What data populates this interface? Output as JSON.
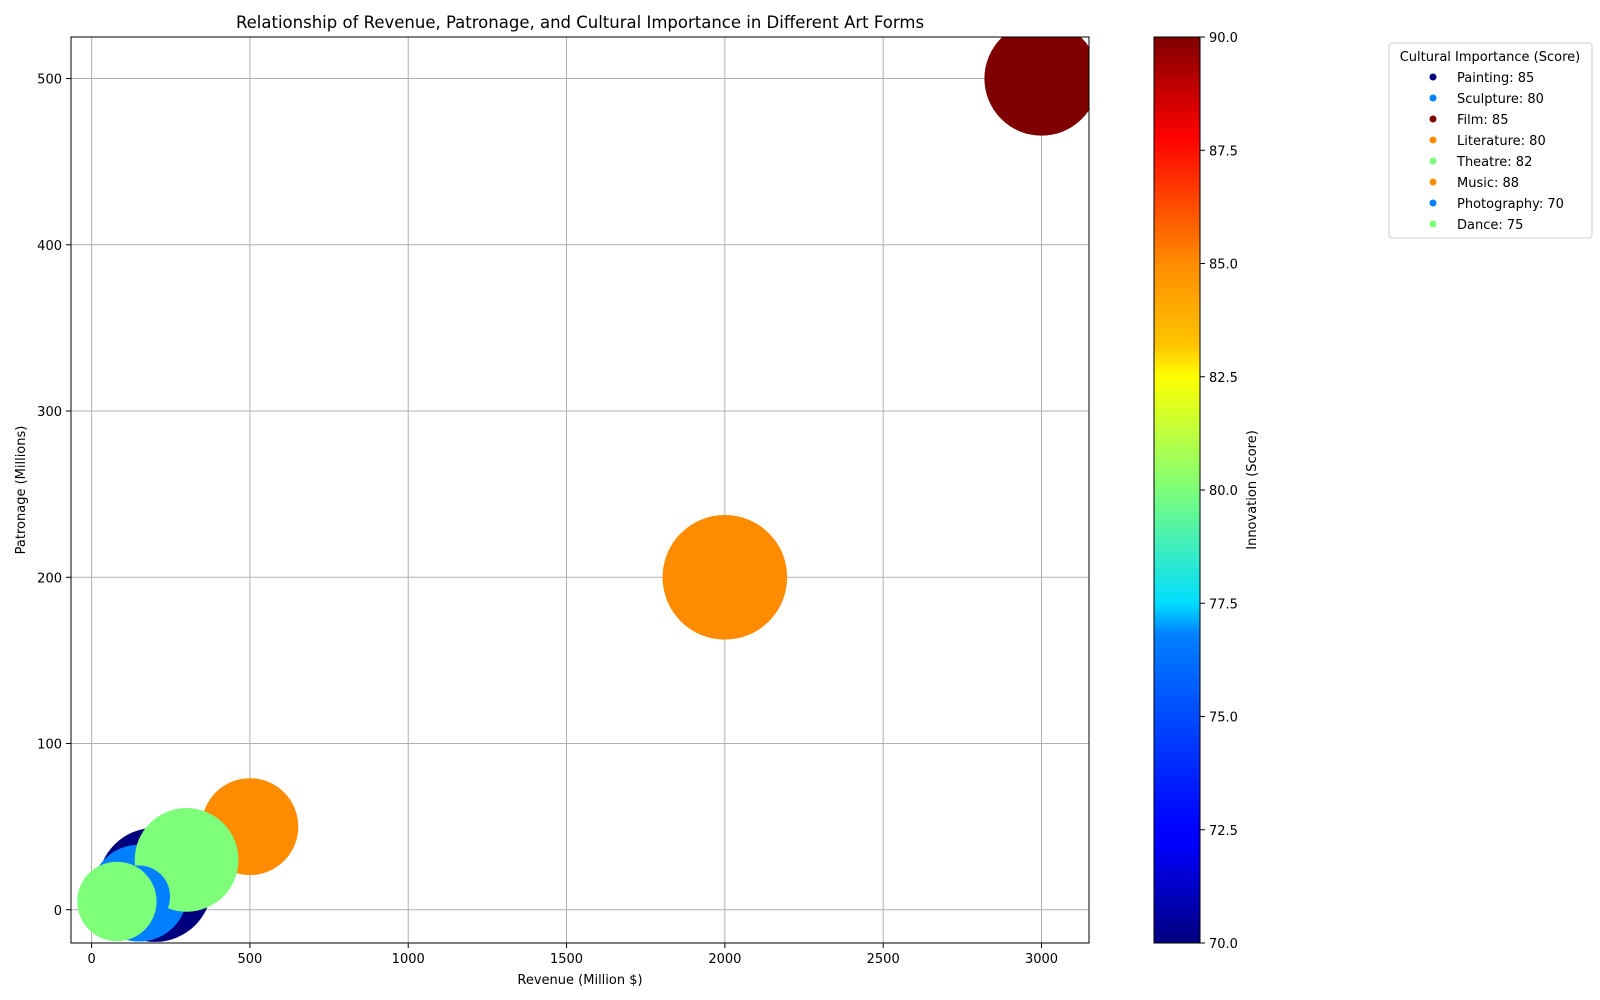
{
  "chart_data": {
    "type": "scatter",
    "title": "Relationship of Revenue, Patronage, and Cultural Importance in Different Art Forms",
    "xlabel": "Revenue (Million $)",
    "ylabel": "Patronage (Millions)",
    "xlim": [
      -65,
      3150
    ],
    "ylim": [
      -20,
      525
    ],
    "xticks": [
      0,
      500,
      1000,
      1500,
      2000,
      2500,
      3000
    ],
    "yticks": [
      0,
      100,
      200,
      300,
      400,
      500
    ],
    "grid": true,
    "colormap": "jet",
    "colorbar": {
      "label": "Innovation (Score)",
      "range": [
        70,
        90
      ],
      "ticks": [
        "70.0",
        "72.5",
        "75.0",
        "77.5",
        "80.0",
        "82.5",
        "85.0",
        "87.5",
        "90.0"
      ]
    },
    "legend": {
      "title": "Cultural Importance (Score)",
      "placement": "outside-right"
    },
    "points": [
      {
        "label": "Painting: 85",
        "x": 200,
        "y": 15,
        "cultural_importance": 85,
        "innovation": 70,
        "color": "#00007f"
      },
      {
        "label": "Sculpture: 80",
        "x": 150,
        "y": 10,
        "cultural_importance": 80,
        "innovation": 75,
        "color": "#0080ff"
      },
      {
        "label": "Film: 85",
        "x": 3000,
        "y": 500,
        "cultural_importance": 85,
        "innovation": 90,
        "color": "#7f0000"
      },
      {
        "label": "Literature: 80",
        "x": 500,
        "y": 50,
        "cultural_importance": 80,
        "innovation": 85,
        "color": "#ff8c00"
      },
      {
        "label": "Theatre: 82",
        "x": 300,
        "y": 30,
        "cultural_importance": 82,
        "innovation": 80,
        "color": "#7dff7a"
      },
      {
        "label": "Music: 88",
        "x": 2000,
        "y": 200,
        "cultural_importance": 88,
        "innovation": 85,
        "color": "#ff8c00"
      },
      {
        "label": "Photography: 70",
        "x": 150,
        "y": 8,
        "cultural_importance": 70,
        "innovation": 75,
        "color": "#0080ff"
      },
      {
        "label": "Dance: 75",
        "x": 80,
        "y": 5,
        "cultural_importance": 75,
        "innovation": 80,
        "color": "#7dff7a"
      }
    ]
  }
}
